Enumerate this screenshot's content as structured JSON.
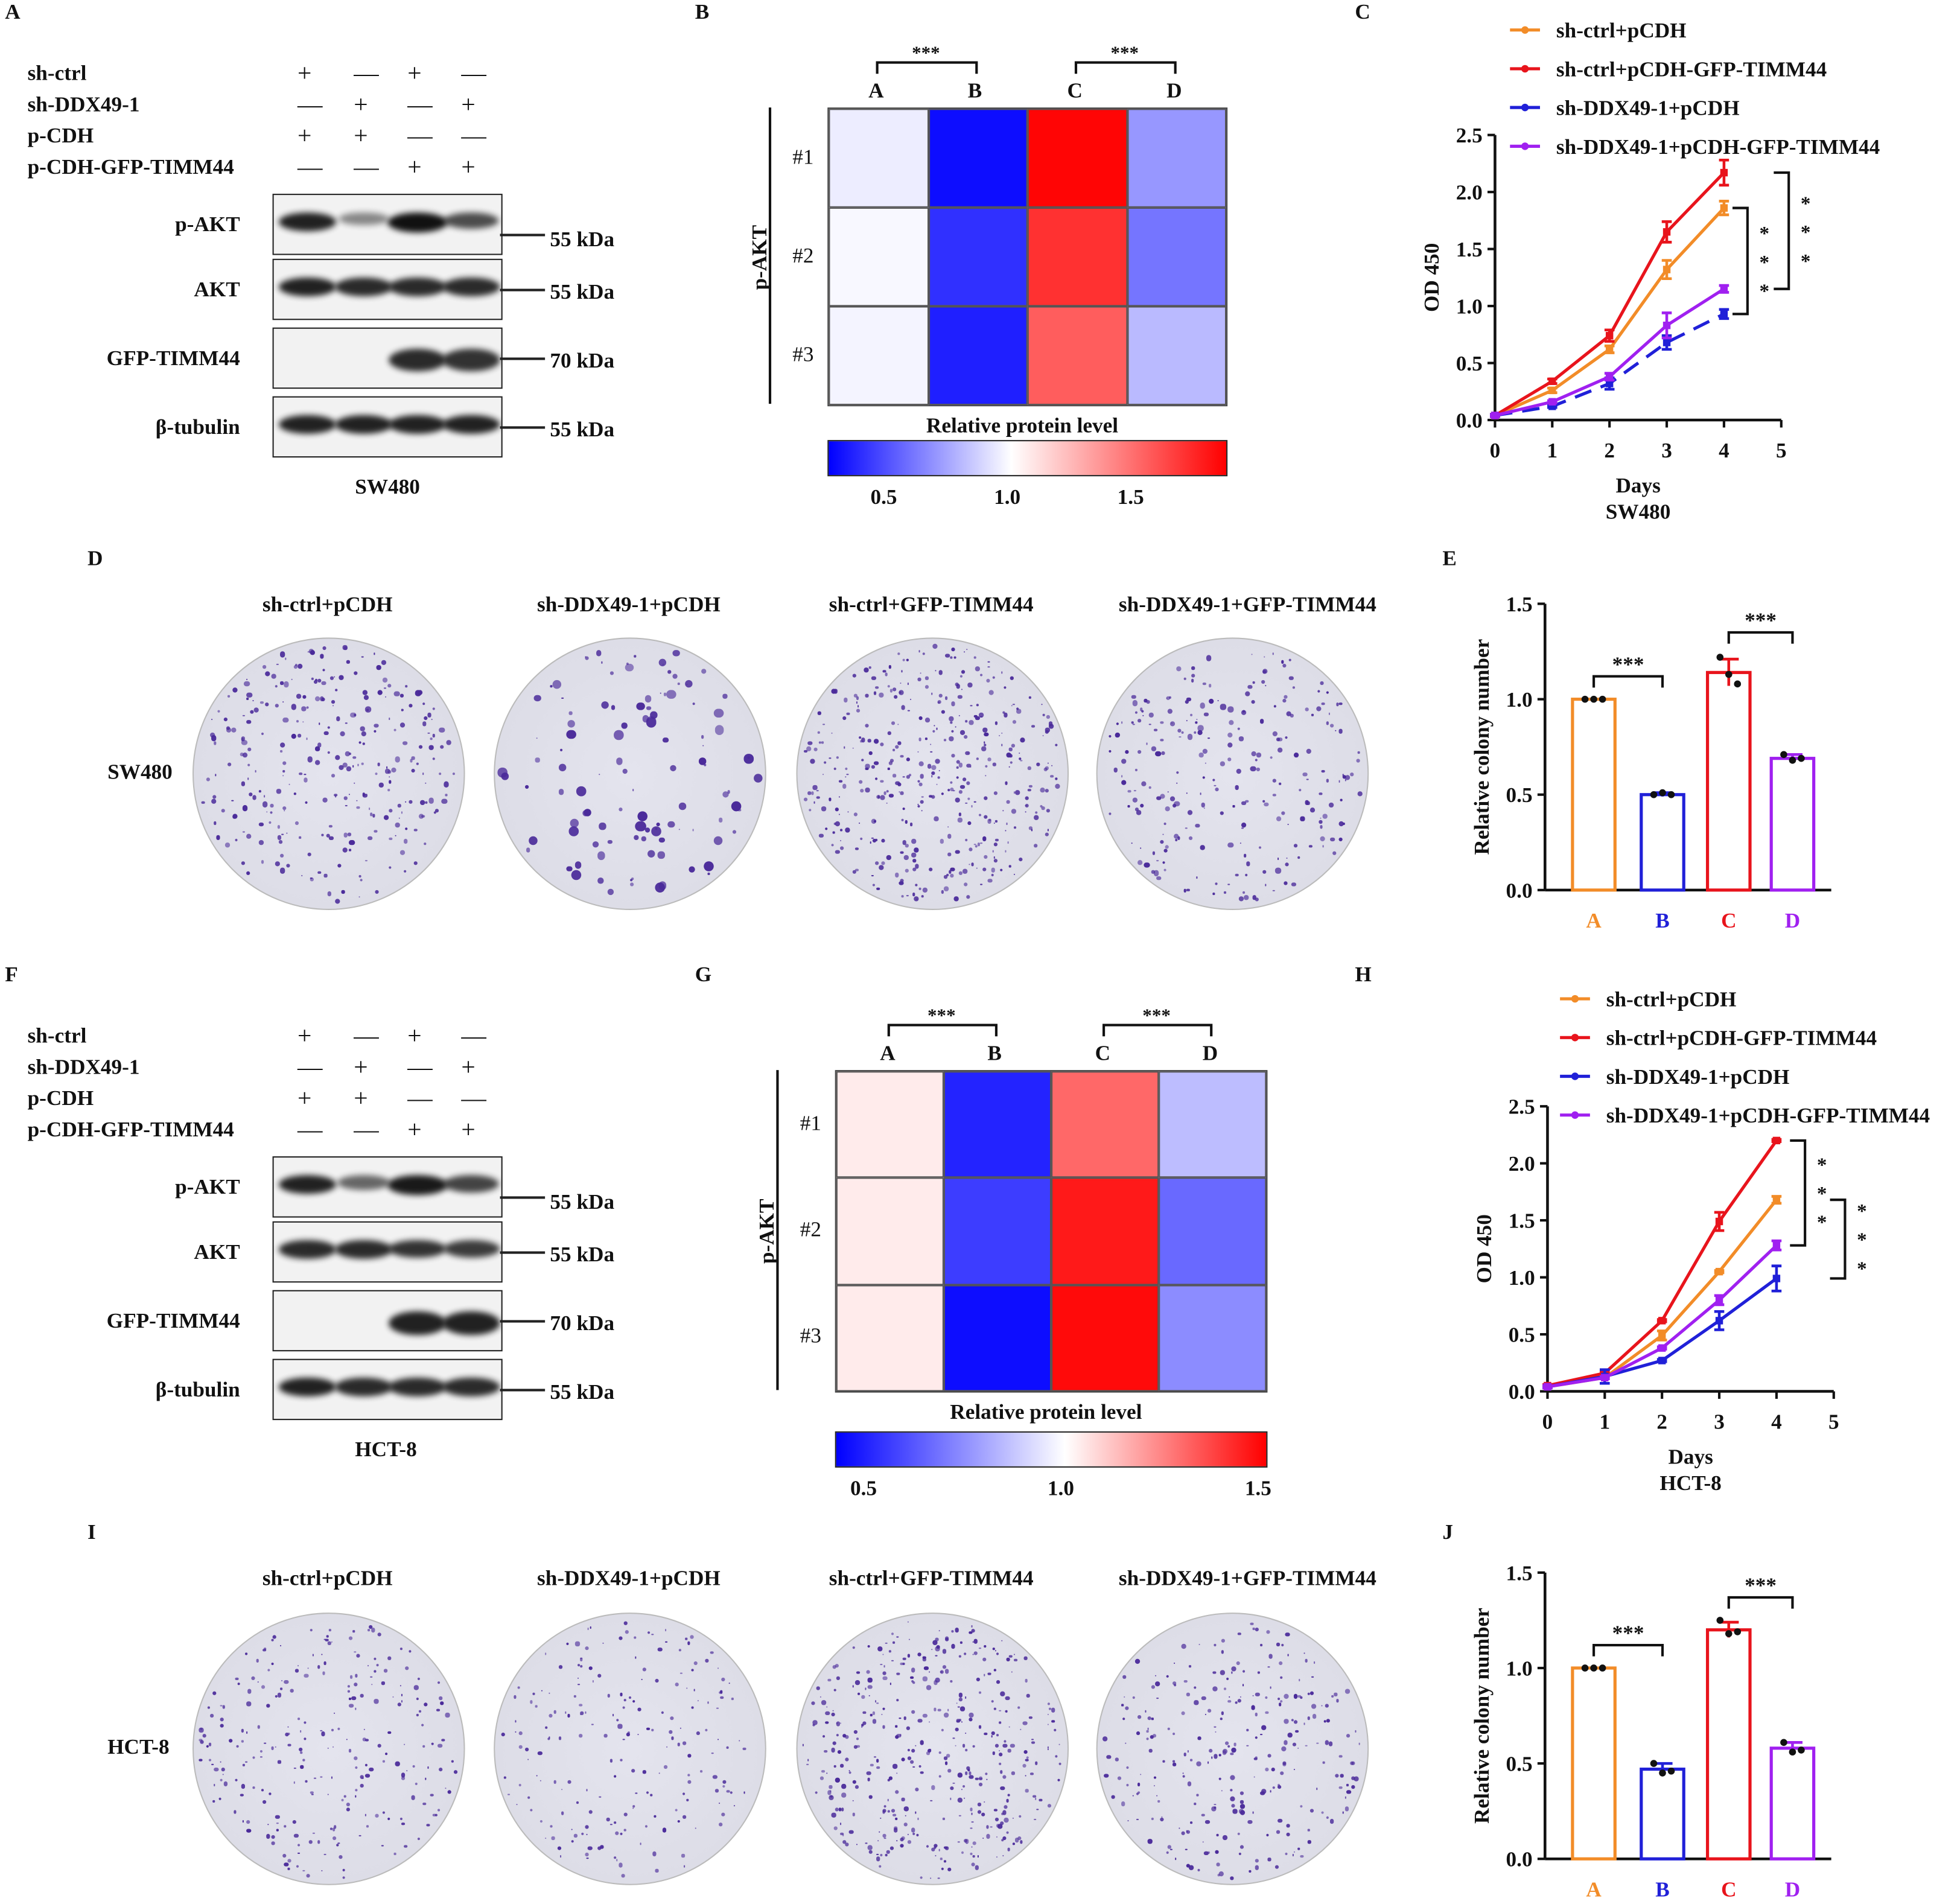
{
  "panels": {
    "A": {
      "label": "A",
      "cell_line": "SW480"
    },
    "B": {
      "label": "B"
    },
    "C": {
      "label": "C"
    },
    "D": {
      "label": "D"
    },
    "E": {
      "label": "E"
    },
    "F": {
      "label": "F",
      "cell_line": "HCT-8"
    },
    "G": {
      "label": "G"
    },
    "H": {
      "label": "H"
    },
    "I": {
      "label": "I"
    },
    "J": {
      "label": "J"
    }
  },
  "conditions": [
    {
      "name": "sh-ctrl",
      "signs": [
        "+",
        "—",
        "+",
        "—"
      ]
    },
    {
      "name": "sh-DDX49-1",
      "signs": [
        "—",
        "+",
        "—",
        "+"
      ]
    },
    {
      "name": "p-CDH",
      "signs": [
        "+",
        "+",
        "—",
        "—"
      ]
    },
    {
      "name": "p-CDH-GFP-TIMM44",
      "signs": [
        "—",
        "—",
        "+",
        "+"
      ]
    }
  ],
  "blots": {
    "SW480": [
      {
        "name": "p-AKT",
        "kda": "55 kDa",
        "intensity": [
          0.9,
          0.3,
          1.0,
          0.65
        ]
      },
      {
        "name": "AKT",
        "kda": "55 kDa",
        "intensity": [
          0.9,
          0.85,
          0.85,
          0.85
        ]
      },
      {
        "name": "GFP-TIMM44",
        "kda": "70 kDa",
        "intensity": [
          0,
          0,
          0.85,
          0.8
        ]
      },
      {
        "name": "β-tubulin",
        "kda": "55 kDa",
        "intensity": [
          0.9,
          0.9,
          0.9,
          0.9
        ]
      }
    ],
    "HCT-8": [
      {
        "name": "p-AKT",
        "kda": "55 kDa",
        "intensity": [
          0.9,
          0.5,
          0.95,
          0.7
        ]
      },
      {
        "name": "AKT",
        "kda": "55 kDa",
        "intensity": [
          0.85,
          0.85,
          0.8,
          0.75
        ]
      },
      {
        "name": "GFP-TIMM44",
        "kda": "70 kDa",
        "intensity": [
          0,
          0,
          0.9,
          0.9
        ]
      },
      {
        "name": "β-tubulin",
        "kda": "55 kDa",
        "intensity": [
          0.9,
          0.85,
          0.85,
          0.85
        ]
      }
    ]
  },
  "colony": {
    "titles": [
      "sh-ctrl+pCDH",
      "sh-DDX49-1+pCDH",
      "sh-ctrl+GFP-TIMM44",
      "sh-DDX49-1+GFP-TIMM44"
    ],
    "rows": [
      "SW480",
      "HCT-8"
    ]
  },
  "colors": {
    "A": "#f28c28",
    "B": "#2020d8",
    "C": "#e8141c",
    "D": "#a020f0"
  },
  "chart_data": [
    {
      "id": "B",
      "type": "heatmap",
      "ylabel": "p-AKT",
      "title": "Relative protein level",
      "columns": [
        "A",
        "B",
        "C",
        "D"
      ],
      "rows": [
        "#1",
        "#2",
        "#3"
      ],
      "values": [
        [
          0.95,
          0.3,
          1.85,
          0.7
        ],
        [
          0.98,
          0.4,
          1.7,
          0.6
        ],
        [
          0.97,
          0.35,
          1.55,
          0.8
        ]
      ],
      "range": [
        0.26,
        1.87
      ],
      "ticks": [
        "0.5",
        "1.0",
        "1.5"
      ],
      "tick_values": [
        0.5,
        1.0,
        1.5
      ],
      "comparisons": [
        {
          "from": "A",
          "to": "B",
          "label": "***"
        },
        {
          "from": "C",
          "to": "D",
          "label": "***"
        }
      ]
    },
    {
      "id": "C",
      "type": "line",
      "xlabel": "Days",
      "subtitle": "SW480",
      "ylabel": "OD 450",
      "x": [
        0,
        1,
        2,
        3,
        4
      ],
      "xticks": [
        "0",
        "1",
        "2",
        "3",
        "4",
        "5"
      ],
      "yticks": [
        "0.0",
        "0.5",
        "1.0",
        "1.5",
        "2.0",
        "2.5"
      ],
      "xlim": [
        0,
        5
      ],
      "ylim": [
        0,
        2.5
      ],
      "legend": "top",
      "series": [
        {
          "name": "sh-ctrl+pCDH",
          "color": "#f28c28",
          "values": [
            0.04,
            0.26,
            0.62,
            1.32,
            1.86
          ],
          "err": [
            0.01,
            0.02,
            0.03,
            0.08,
            0.06
          ]
        },
        {
          "name": "sh-ctrl+pCDH-GFP-TIMM44",
          "color": "#e8141c",
          "values": [
            0.04,
            0.34,
            0.74,
            1.65,
            2.17
          ],
          "err": [
            0.01,
            0.02,
            0.05,
            0.09,
            0.11
          ]
        },
        {
          "name": "sh-DDX49-1+pCDH",
          "color": "#2020d8",
          "values": [
            0.04,
            0.12,
            0.32,
            0.68,
            0.93
          ],
          "err": [
            0.01,
            0.01,
            0.05,
            0.06,
            0.04
          ],
          "dashed": true
        },
        {
          "name": "sh-DDX49-1+pCDH-GFP-TIMM44",
          "color": "#a020f0",
          "values": [
            0.04,
            0.16,
            0.38,
            0.83,
            1.15
          ],
          "err": [
            0.01,
            0.01,
            0.03,
            0.11,
            0.03
          ]
        }
      ],
      "significance": [
        {
          "from": 1.86,
          "to": 0.93,
          "label": "***"
        },
        {
          "from": 2.17,
          "to": 1.15,
          "label": "***"
        }
      ]
    },
    {
      "id": "E",
      "type": "bar",
      "ylabel": "Relative colony number",
      "categories": [
        "A",
        "B",
        "C",
        "D"
      ],
      "values": [
        1.0,
        0.5,
        1.14,
        0.69
      ],
      "err": [
        0.0,
        0.01,
        0.07,
        0.02
      ],
      "points": [
        [
          1.0,
          1.0,
          1.0
        ],
        [
          0.5,
          0.51,
          0.5
        ],
        [
          1.22,
          1.13,
          1.08
        ],
        [
          0.71,
          0.68,
          0.69
        ]
      ],
      "ylim": [
        0,
        1.5
      ],
      "yticks": [
        "0.0",
        "0.5",
        "1.0",
        "1.5"
      ],
      "comparisons": [
        {
          "from": 0,
          "to": 1,
          "y": 1.12,
          "label": "***"
        },
        {
          "from": 2,
          "to": 3,
          "y": 1.35,
          "label": "***"
        }
      ]
    },
    {
      "id": "G",
      "type": "heatmap",
      "ylabel": "p-AKT",
      "title": "Relative protein level",
      "columns": [
        "A",
        "B",
        "C",
        "D"
      ],
      "rows": [
        "#1",
        "#2",
        "#3"
      ],
      "values": [
        [
          1.04,
          0.5,
          1.3,
          0.85
        ],
        [
          1.04,
          0.56,
          1.46,
          0.66
        ],
        [
          1.04,
          0.45,
          1.49,
          0.74
        ]
      ],
      "range": [
        0.42,
        1.51
      ],
      "ticks": [
        "0.5",
        "1.0",
        "1.5"
      ],
      "tick_values": [
        0.5,
        1.0,
        1.5
      ],
      "comparisons": [
        {
          "from": "A",
          "to": "B",
          "label": "***"
        },
        {
          "from": "C",
          "to": "D",
          "label": "***"
        }
      ]
    },
    {
      "id": "H",
      "type": "line",
      "xlabel": "Days",
      "subtitle": "HCT-8",
      "ylabel": "OD 450",
      "x": [
        0,
        1,
        2,
        3,
        4
      ],
      "xticks": [
        "0",
        "1",
        "2",
        "3",
        "4",
        "5"
      ],
      "yticks": [
        "0.0",
        "0.5",
        "1.0",
        "1.5",
        "2.0",
        "2.5"
      ],
      "xlim": [
        0,
        5
      ],
      "ylim": [
        0,
        2.5
      ],
      "legend": "top",
      "series": [
        {
          "name": "sh-ctrl+pCDH",
          "color": "#f28c28",
          "values": [
            0.04,
            0.12,
            0.49,
            1.05,
            1.68
          ],
          "err": [
            0.01,
            0.01,
            0.04,
            0.01,
            0.03
          ]
        },
        {
          "name": "sh-ctrl+pCDH-GFP-TIMM44",
          "color": "#e8141c",
          "values": [
            0.05,
            0.16,
            0.62,
            1.49,
            2.2
          ],
          "err": [
            0.01,
            0.01,
            0.01,
            0.08,
            0.01
          ]
        },
        {
          "name": "sh-DDX49-1+pCDH",
          "color": "#2020d8",
          "values": [
            0.04,
            0.13,
            0.27,
            0.62,
            0.99
          ],
          "err": [
            0.01,
            0.06,
            0.01,
            0.08,
            0.11
          ]
        },
        {
          "name": "sh-DDX49-1+pCDH-GFP-TIMM44",
          "color": "#a020f0",
          "values": [
            0.04,
            0.12,
            0.38,
            0.8,
            1.28
          ],
          "err": [
            0.01,
            0.01,
            0.01,
            0.04,
            0.04
          ]
        }
      ],
      "significance": [
        {
          "from": 2.2,
          "to": 1.28,
          "label": "***"
        },
        {
          "from": 1.68,
          "to": 0.99,
          "label": "***"
        }
      ]
    },
    {
      "id": "J",
      "type": "bar",
      "ylabel": "Relative colony number",
      "categories": [
        "A",
        "B",
        "C",
        "D"
      ],
      "values": [
        1.0,
        0.47,
        1.2,
        0.58
      ],
      "err": [
        0.0,
        0.03,
        0.04,
        0.03
      ],
      "points": [
        [
          1.0,
          1.0,
          1.0
        ],
        [
          0.5,
          0.45,
          0.46
        ],
        [
          1.25,
          1.18,
          1.19
        ],
        [
          0.61,
          0.56,
          0.57
        ]
      ],
      "ylim": [
        0,
        1.5
      ],
      "yticks": [
        "0.0",
        "0.5",
        "1.0",
        "1.5"
      ],
      "comparisons": [
        {
          "from": 0,
          "to": 1,
          "y": 1.12,
          "label": "***"
        },
        {
          "from": 2,
          "to": 3,
          "y": 1.37,
          "label": "***"
        }
      ]
    }
  ]
}
